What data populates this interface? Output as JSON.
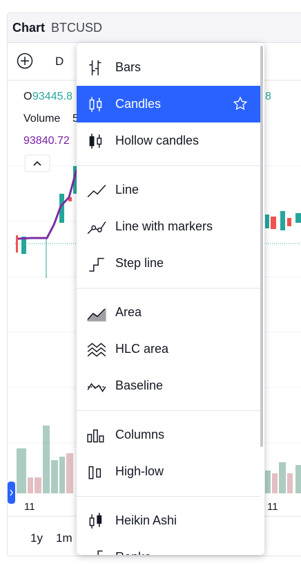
{
  "header": {
    "title": "Chart",
    "symbol": "BTCUSD"
  },
  "toolbar": {
    "interval": "D"
  },
  "legend": {
    "open_label": "O",
    "open_value": "93445.8",
    "right_value": "8",
    "volume_label": "Volume",
    "volume_value": "5",
    "price": "93840.72"
  },
  "axis": {
    "left_date": "11",
    "right_date": "11"
  },
  "ranges": [
    "1y",
    "1m"
  ],
  "menu": {
    "sections": [
      [
        {
          "label": "Bars"
        },
        {
          "label": "Candles",
          "selected": true
        },
        {
          "label": "Hollow candles"
        }
      ],
      [
        {
          "label": "Line"
        },
        {
          "label": "Line with markers"
        },
        {
          "label": "Step line"
        }
      ],
      [
        {
          "label": "Area"
        },
        {
          "label": "HLC area"
        },
        {
          "label": "Baseline"
        }
      ],
      [
        {
          "label": "Columns"
        },
        {
          "label": "High-low"
        }
      ],
      [
        {
          "label": "Heikin Ashi"
        },
        {
          "label": "Renko"
        }
      ]
    ]
  }
}
